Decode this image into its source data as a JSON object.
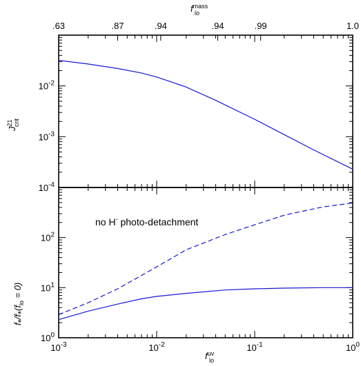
{
  "chart_data": [
    {
      "type": "line",
      "title": "",
      "xscale": "log",
      "yscale": "log",
      "xlim": [
        0.001,
        1
      ],
      "ylim": [
        0.0001,
        0.1
      ],
      "top_axis": {
        "label_main": "f",
        "label_sup": "mass",
        "label_sub": "lo",
        "tick_labels": [
          {
            "x": 0.001,
            "label": ".63"
          },
          {
            "x": 0.004,
            "label": ".87"
          },
          {
            "x": 0.011,
            "label": ".94"
          },
          {
            "x": 0.042,
            "label": ".94"
          },
          {
            "x": 0.115,
            "label": ".99"
          },
          {
            "x": 1,
            "label": "1.0"
          }
        ]
      },
      "ylabel": {
        "main": "J",
        "sup": "21",
        "sub": "crit"
      },
      "yticks": [
        {
          "v": 0.0001,
          "base": "10",
          "exp": "-4"
        },
        {
          "v": 0.001,
          "base": "10",
          "exp": "-3"
        },
        {
          "v": 0.01,
          "base": "10",
          "exp": "-2"
        }
      ],
      "series": [
        {
          "style": "solid",
          "x": [
            0.001,
            0.002,
            0.004,
            0.007,
            0.01,
            0.02,
            0.04,
            0.1,
            0.2,
            0.4,
            1.0
          ],
          "y": [
            0.032,
            0.027,
            0.022,
            0.018,
            0.015,
            0.0095,
            0.0052,
            0.0022,
            0.0011,
            0.00055,
            0.00023
          ]
        }
      ]
    },
    {
      "type": "line",
      "title": "",
      "xscale": "log",
      "yscale": "log",
      "xlim": [
        0.001,
        1
      ],
      "ylim": [
        1,
        1000
      ],
      "xlabel": {
        "main": "f",
        "sup": "uv",
        "sub": "lo"
      },
      "ylabel": {
        "text": "f*/f*(flo = 0)",
        "p1": "f",
        "p2": "/f",
        "p3": "(f",
        "p4": "lo",
        "p5": " = 0)",
        "star": "*"
      },
      "xticks": [
        {
          "v": 0.001,
          "base": "10",
          "exp": "-3"
        },
        {
          "v": 0.01,
          "base": "10",
          "exp": "-2"
        },
        {
          "v": 0.1,
          "base": "10",
          "exp": "-1"
        },
        {
          "v": 1,
          "base": "10",
          "exp": "0"
        }
      ],
      "yticks": [
        {
          "v": 1,
          "base": "10",
          "exp": "0"
        },
        {
          "v": 10,
          "base": "10",
          "exp": "1"
        },
        {
          "v": 100,
          "base": "10",
          "exp": "2"
        }
      ],
      "annotation": {
        "p1": "no H",
        "sup": "-",
        "p2": " photo-detachment"
      },
      "series": [
        {
          "style": "solid",
          "x": [
            0.001,
            0.002,
            0.004,
            0.007,
            0.01,
            0.02,
            0.05,
            0.1,
            0.2,
            0.5,
            1.0
          ],
          "y": [
            2.3,
            3.4,
            4.7,
            6.0,
            6.7,
            7.7,
            9.0,
            9.5,
            9.8,
            10.0,
            10.0
          ]
        },
        {
          "style": "dashed",
          "x": [
            0.001,
            0.002,
            0.004,
            0.01,
            0.02,
            0.05,
            0.1,
            0.2,
            0.5,
            1.0
          ],
          "y": [
            2.9,
            5.0,
            9.5,
            26,
            57,
            115,
            180,
            280,
            410,
            490
          ]
        }
      ]
    }
  ]
}
